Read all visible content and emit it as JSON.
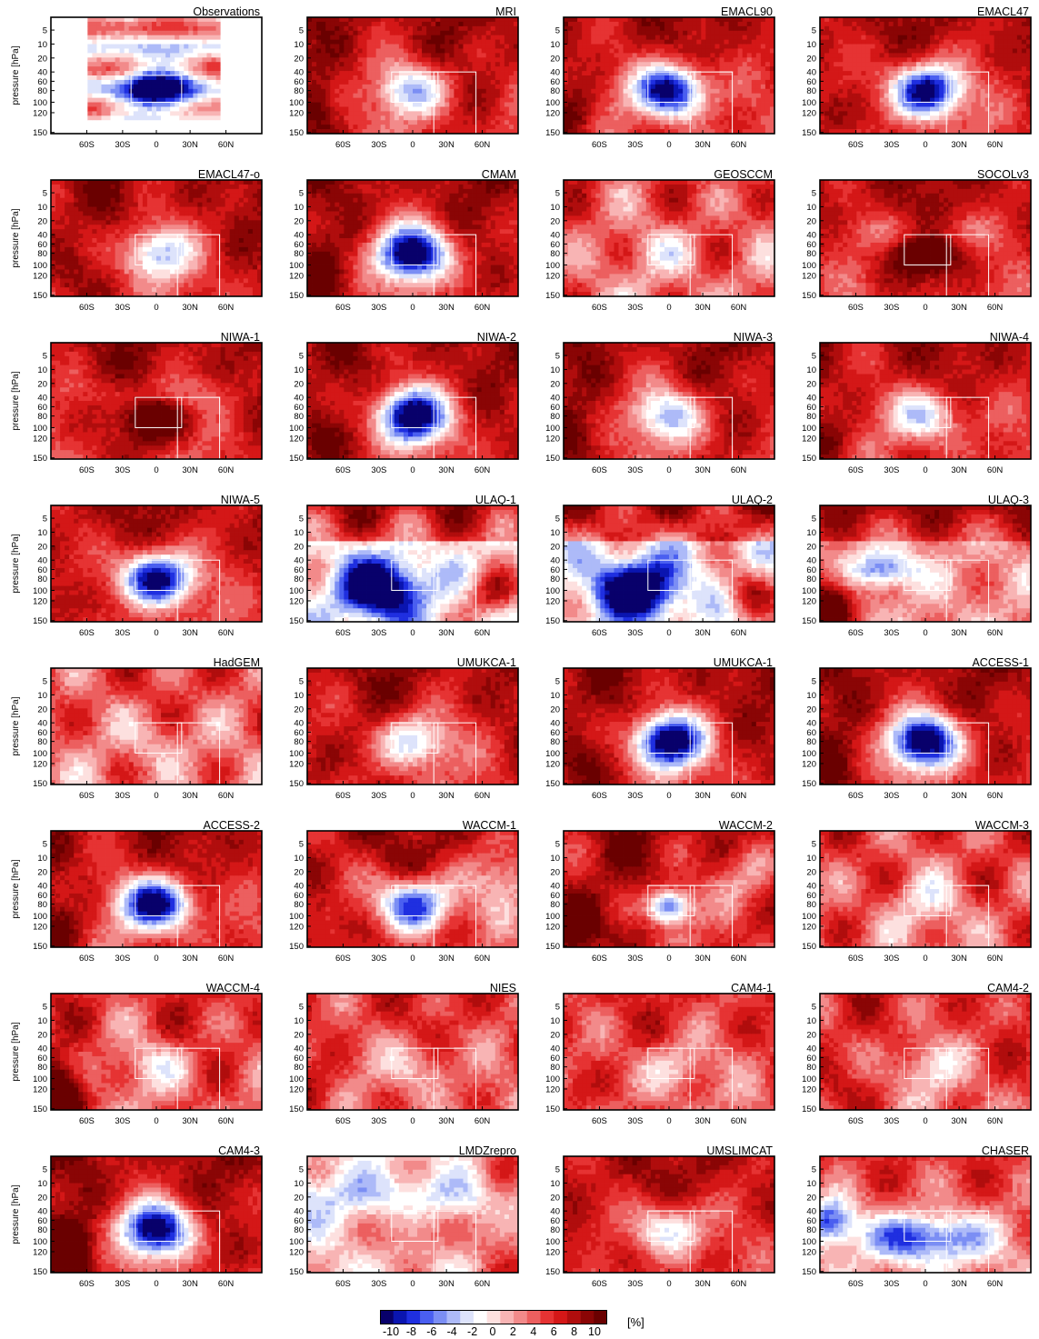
{
  "chart_data": {
    "type": "heatmap",
    "ylabel": "pressure [hPa]",
    "unit": "[%]",
    "y_ticks": [
      "5",
      "10",
      "20",
      "40",
      "60",
      "80",
      "100",
      "120",
      "150"
    ],
    "x_ticks_obs": [
      "60S",
      "30S",
      "0",
      "30N",
      "60N"
    ],
    "x_ticks_model": [
      "60S",
      "30S",
      "0",
      "30N",
      "60N"
    ],
    "colorbar": {
      "ticks": [
        "-10",
        "-8",
        "-6",
        "-4",
        "-2",
        "0",
        "2",
        "4",
        "6",
        "8",
        "10"
      ],
      "range": [
        -10,
        10
      ],
      "colors": [
        "#08006b",
        "#0a15b0",
        "#1f2fe0",
        "#4a5ff0",
        "#7b8ef4",
        "#adbaf8",
        "#dde3fb",
        "#ffffff",
        "#fde0df",
        "#f8b4b4",
        "#f28a8a",
        "#ec5f5f",
        "#e63333",
        "#d41717",
        "#b00d0d",
        "#8a0505",
        "#6a0000"
      ]
    },
    "panels": [
      {
        "name": "Observations",
        "pattern": "obs"
      },
      {
        "name": "MRI",
        "pattern": "blue_weak"
      },
      {
        "name": "EMACL90",
        "pattern": "blue_strong"
      },
      {
        "name": "EMACL47",
        "pattern": "blue_strong"
      },
      {
        "name": "EMACL47-o",
        "pattern": "blue_weak"
      },
      {
        "name": "CMAM",
        "pattern": "blue_strong"
      },
      {
        "name": "GEOSCCM",
        "pattern": "mixed"
      },
      {
        "name": "SOCOLv3",
        "pattern": "red_core"
      },
      {
        "name": "NIWA-1",
        "pattern": "red_core"
      },
      {
        "name": "NIWA-2",
        "pattern": "blue_strong"
      },
      {
        "name": "NIWA-3",
        "pattern": "blue_weak"
      },
      {
        "name": "NIWA-4",
        "pattern": "blue_weak"
      },
      {
        "name": "NIWA-5",
        "pattern": "blue_strong"
      },
      {
        "name": "ULAQ-1",
        "pattern": "ulaq"
      },
      {
        "name": "ULAQ-2",
        "pattern": "ulaq"
      },
      {
        "name": "ULAQ-3",
        "pattern": "ulaq3"
      },
      {
        "name": "HadGEM",
        "pattern": "mixed"
      },
      {
        "name": "UMUKCA-1",
        "pattern": "blue_weak"
      },
      {
        "name": "UMUKCA-1",
        "pattern": "blue_strong"
      },
      {
        "name": "ACCESS-1",
        "pattern": "blue_strong"
      },
      {
        "name": "ACCESS-2",
        "pattern": "blue_strong"
      },
      {
        "name": "WACCM-1",
        "pattern": "waccm1"
      },
      {
        "name": "WACCM-2",
        "pattern": "waccm2"
      },
      {
        "name": "WACCM-3",
        "pattern": "mixed"
      },
      {
        "name": "WACCM-4",
        "pattern": "waccm4"
      },
      {
        "name": "NIES",
        "pattern": "weak_all"
      },
      {
        "name": "CAM4-1",
        "pattern": "weak_all"
      },
      {
        "name": "CAM4-2",
        "pattern": "weak_all"
      },
      {
        "name": "CAM4-3",
        "pattern": "blue_strong_left"
      },
      {
        "name": "LMDZrepro",
        "pattern": "lmdz"
      },
      {
        "name": "UMSLIMCAT",
        "pattern": "blue_weak"
      },
      {
        "name": "CHASER",
        "pattern": "chaser"
      }
    ]
  }
}
